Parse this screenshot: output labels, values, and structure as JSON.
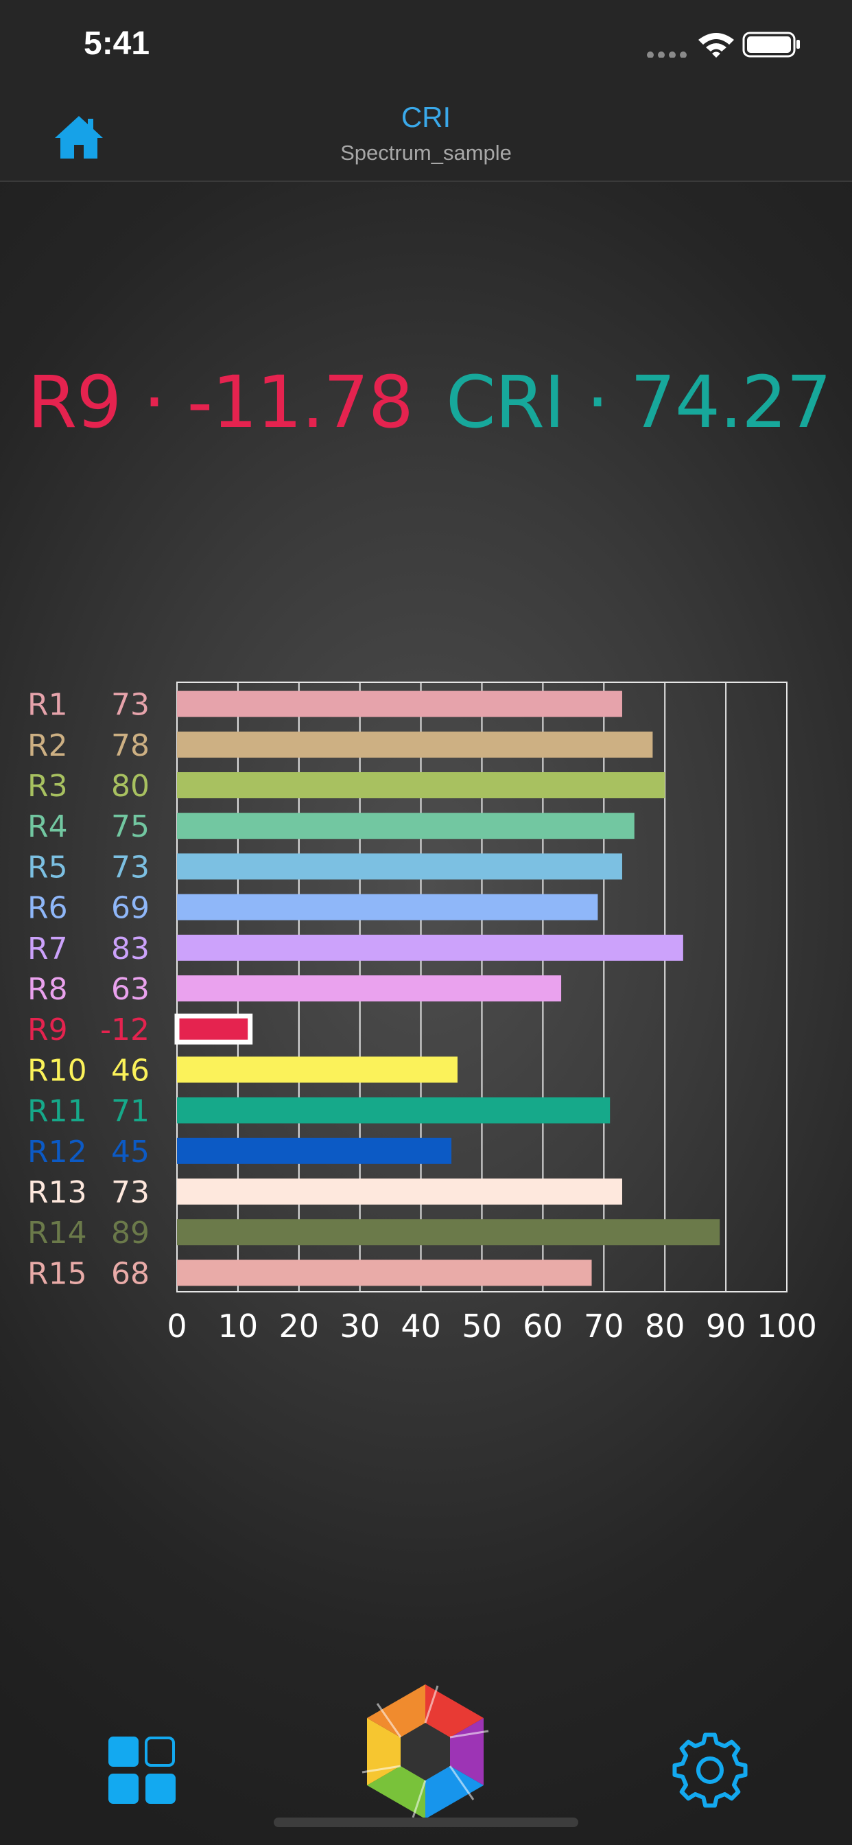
{
  "status_bar": {
    "time": "5:41",
    "icons": [
      "signal-dots-icon",
      "wifi-icon",
      "battery-icon"
    ]
  },
  "nav": {
    "title": "CRI",
    "subtitle": "Spectrum_sample",
    "home_icon": "home-icon"
  },
  "headline": {
    "r9_text": "R9 · -11.78",
    "cri_text": "CRI · 74.27",
    "r9_color": "#e5234f",
    "cri_color": "#17a89b"
  },
  "chart_data": {
    "type": "bar",
    "orientation": "horizontal",
    "title": "",
    "xlabel": "",
    "ylabel": "",
    "xlim": [
      0,
      100
    ],
    "x_ticks": [
      "0",
      "10",
      "20",
      "30",
      "40",
      "50",
      "60",
      "70",
      "80",
      "90",
      "100"
    ],
    "grid": true,
    "categories": [
      "R1",
      "R2",
      "R3",
      "R4",
      "R5",
      "R6",
      "R7",
      "R8",
      "R9",
      "R10",
      "R11",
      "R12",
      "R13",
      "R14",
      "R15"
    ],
    "value_labels": [
      "73",
      "78",
      "80",
      "75",
      "73",
      "69",
      "83",
      "63",
      "-12",
      "46",
      "71",
      "45",
      "73",
      "89",
      "68"
    ],
    "values": [
      73,
      78,
      80,
      75,
      73,
      69,
      83,
      63,
      -12,
      46,
      71,
      45,
      73,
      89,
      68
    ],
    "colors": [
      "#e6a3ab",
      "#cdb083",
      "#a8c160",
      "#72c7a1",
      "#7cc0e2",
      "#8fb7f9",
      "#cca2fb",
      "#eaa2ee",
      "#e5234f",
      "#fbf25a",
      "#16a98a",
      "#0c5ac5",
      "#fee8dd",
      "#6b7a4a",
      "#e9aba8"
    ],
    "label_colors": [
      "#e6a3ab",
      "#cdb083",
      "#a8c160",
      "#72c7a1",
      "#7cc0e2",
      "#8fb7f9",
      "#cca2fb",
      "#eaa2ee",
      "#e5234f",
      "#fbf25a",
      "#16a98a",
      "#0c5ac5",
      "#fee8dd",
      "#6b7a4a",
      "#e9aba8"
    ]
  },
  "tabbar": {
    "grid_icon": "grid-icon",
    "camera_icon": "aperture-icon",
    "gear_icon": "gear-icon"
  }
}
